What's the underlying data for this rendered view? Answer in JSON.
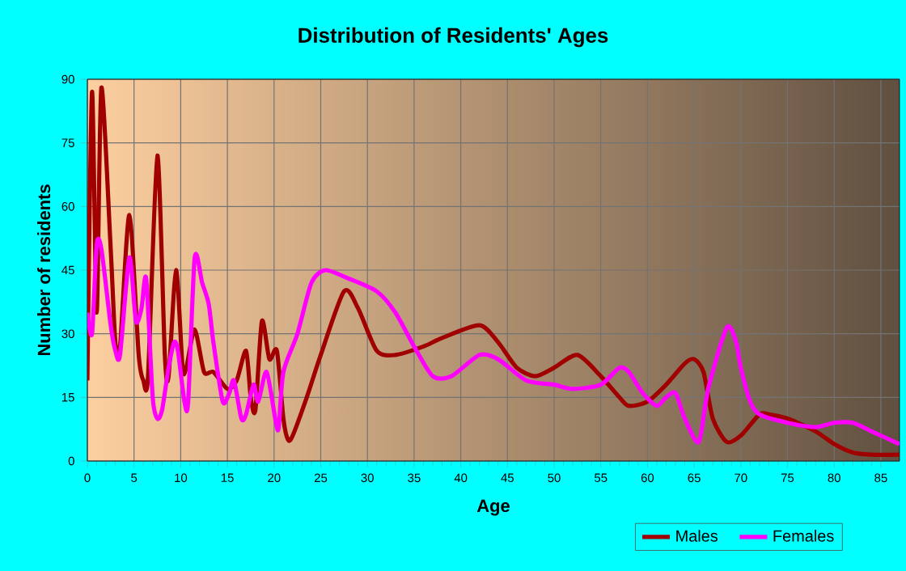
{
  "chart_data": {
    "type": "line",
    "title": "Distribution of Residents' Ages",
    "xlabel": "Age",
    "ylabel": "Number of residents",
    "xlim": [
      0,
      87
    ],
    "ylim": [
      0,
      90
    ],
    "xticks": [
      0,
      5,
      10,
      15,
      20,
      25,
      30,
      35,
      40,
      45,
      50,
      55,
      60,
      65,
      70,
      75,
      80,
      85
    ],
    "yticks": [
      0,
      15,
      30,
      45,
      60,
      75,
      90
    ],
    "grid": true,
    "legend": "bottom right",
    "marker": "none",
    "line_style": "solid",
    "series": [
      {
        "name": "Males",
        "color": "#a00000",
        "x": [
          0,
          0.5,
          1,
          1.5,
          2.5,
          3,
          3.5,
          4.5,
          5.5,
          6,
          6.5,
          7.5,
          8.3,
          8.7,
          9.5,
          10.2,
          10.6,
          11.5,
          12.5,
          13.5,
          15,
          16,
          17,
          17.5,
          18,
          18.7,
          19.5,
          20.3,
          21,
          21.5,
          22,
          23.5,
          25,
          27.5,
          29,
          31,
          33,
          36,
          38,
          42,
          44,
          46,
          48,
          50,
          52.5,
          55,
          57,
          58,
          60,
          62,
          64,
          65,
          66,
          67,
          68.5,
          70,
          72,
          73,
          75,
          78,
          80,
          82,
          84,
          87
        ],
        "values": [
          19,
          87,
          35,
          88,
          50,
          28,
          27,
          58,
          25,
          19,
          20,
          72,
          25,
          20,
          45,
          22,
          22,
          31,
          21,
          21,
          17,
          19,
          26,
          15,
          12,
          33,
          24,
          26,
          10,
          5,
          6,
          15,
          25,
          40,
          36,
          26,
          25,
          27,
          29,
          32,
          28,
          22,
          20,
          22,
          25,
          20,
          15,
          13,
          14,
          18,
          23,
          24,
          21,
          10,
          4.5,
          6,
          11,
          11,
          10,
          7,
          4,
          2,
          1.5,
          1.5
        ]
      },
      {
        "name": "Females",
        "color": "#ff00ff",
        "x": [
          0,
          0.5,
          1,
          1.5,
          2.5,
          3,
          3.5,
          4.5,
          5.2,
          5.8,
          6.3,
          7,
          7.5,
          8,
          8.7,
          9.3,
          9.7,
          10.4,
          10.8,
          11.5,
          12.3,
          13,
          13.5,
          14.5,
          15.2,
          15.7,
          16.5,
          17,
          17.8,
          18.3,
          19.2,
          20.2,
          20.5,
          21,
          22.5,
          24,
          25.5,
          28,
          31,
          33,
          35,
          37,
          39,
          42,
          44,
          47,
          50,
          52,
          55,
          57,
          58,
          59.5,
          61,
          62,
          63,
          64,
          65.5,
          66.5,
          68.5,
          69.5,
          70,
          71,
          72,
          75,
          78,
          80,
          82,
          84,
          87
        ],
        "values": [
          35,
          30,
          51,
          50,
          32,
          26,
          25,
          48,
          33,
          36,
          43,
          15,
          10,
          12,
          22,
          28,
          26,
          14,
          14,
          48,
          42,
          37,
          28,
          14,
          16,
          19,
          10,
          11,
          18,
          14,
          21,
          9,
          8,
          21,
          30,
          42,
          45,
          43,
          40,
          35,
          27,
          20,
          20,
          25,
          24,
          19,
          18,
          17,
          18,
          22,
          21,
          16,
          13,
          15,
          16,
          10,
          4.5,
          17,
          31.5,
          28,
          22,
          14,
          11,
          9,
          8,
          9,
          9,
          7,
          4
        ]
      }
    ]
  }
}
